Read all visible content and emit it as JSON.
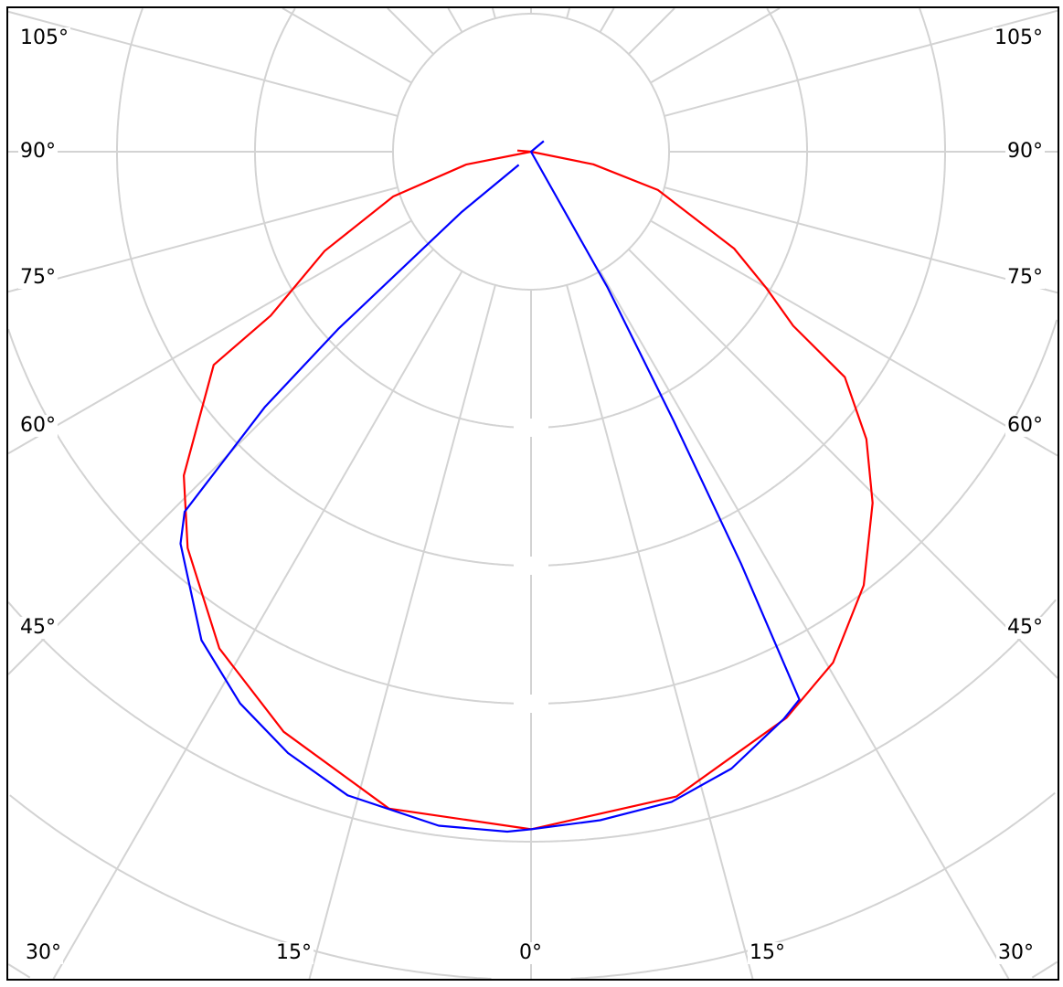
{
  "chart_data": {
    "type": "polar-line",
    "title": "",
    "angle_unit": "degrees",
    "angle_zero": "bottom",
    "grid": true,
    "ring_count": 7,
    "angle_labels": {
      "left": [
        "105°",
        "90°",
        "75°",
        "60°",
        "45°"
      ],
      "right": [
        "105°",
        "90°",
        "75°",
        "60°",
        "45°"
      ],
      "bottom": [
        "30°",
        "15°",
        "0°",
        "15°",
        "30°"
      ]
    },
    "series": [
      {
        "color": "#ff0000",
        "points": [
          [
            -95,
            0.1
          ],
          [
            -90,
            0
          ],
          [
            -78.8,
            0.48
          ],
          [
            -72,
            1.05
          ],
          [
            -64.3,
            1.66
          ],
          [
            -57.8,
            2.23
          ],
          [
            -56.1,
            2.77
          ],
          [
            -47,
            3.44
          ],
          [
            -40.9,
            3.8
          ],
          [
            -32.1,
            4.25
          ],
          [
            -23.1,
            4.57
          ],
          [
            -12.2,
            4.87
          ],
          [
            0,
            4.91
          ],
          [
            12.7,
            4.79
          ],
          [
            24.3,
            4.5
          ],
          [
            30.6,
            4.3
          ],
          [
            37.5,
            3.96
          ],
          [
            44.2,
            3.55
          ],
          [
            49.4,
            3.2
          ],
          [
            54.3,
            2.8
          ],
          [
            56.4,
            2.28
          ],
          [
            59.9,
            1.97
          ],
          [
            64.5,
            1.63
          ],
          [
            73.2,
            0.96
          ],
          [
            78.5,
            0.46
          ],
          [
            90,
            0
          ]
        ]
      },
      {
        "color": "#0000ff",
        "points": [
          [
            -43,
            0.13
          ],
          [
            -49,
            0.67
          ],
          [
            -47.4,
            1.9
          ],
          [
            -46.2,
            2.67
          ],
          [
            -43.9,
            3.62
          ],
          [
            -41.8,
            3.81
          ],
          [
            -34,
            4.27
          ],
          [
            -27.8,
            4.52
          ],
          [
            -22,
            4.7
          ],
          [
            -15.9,
            4.85
          ],
          [
            -7.8,
            4.93
          ],
          [
            -2,
            4.93
          ],
          [
            0,
            4.91
          ],
          [
            5.9,
            4.87
          ],
          [
            12.2,
            4.82
          ],
          [
            18,
            4.7
          ],
          [
            24,
            4.5
          ],
          [
            26.1,
            4.42
          ],
          [
            27,
            3.35
          ],
          [
            27.9,
            2.21
          ],
          [
            29.4,
            1.13
          ],
          [
            0,
            0
          ],
          [
            130,
            0.12
          ]
        ]
      }
    ]
  }
}
